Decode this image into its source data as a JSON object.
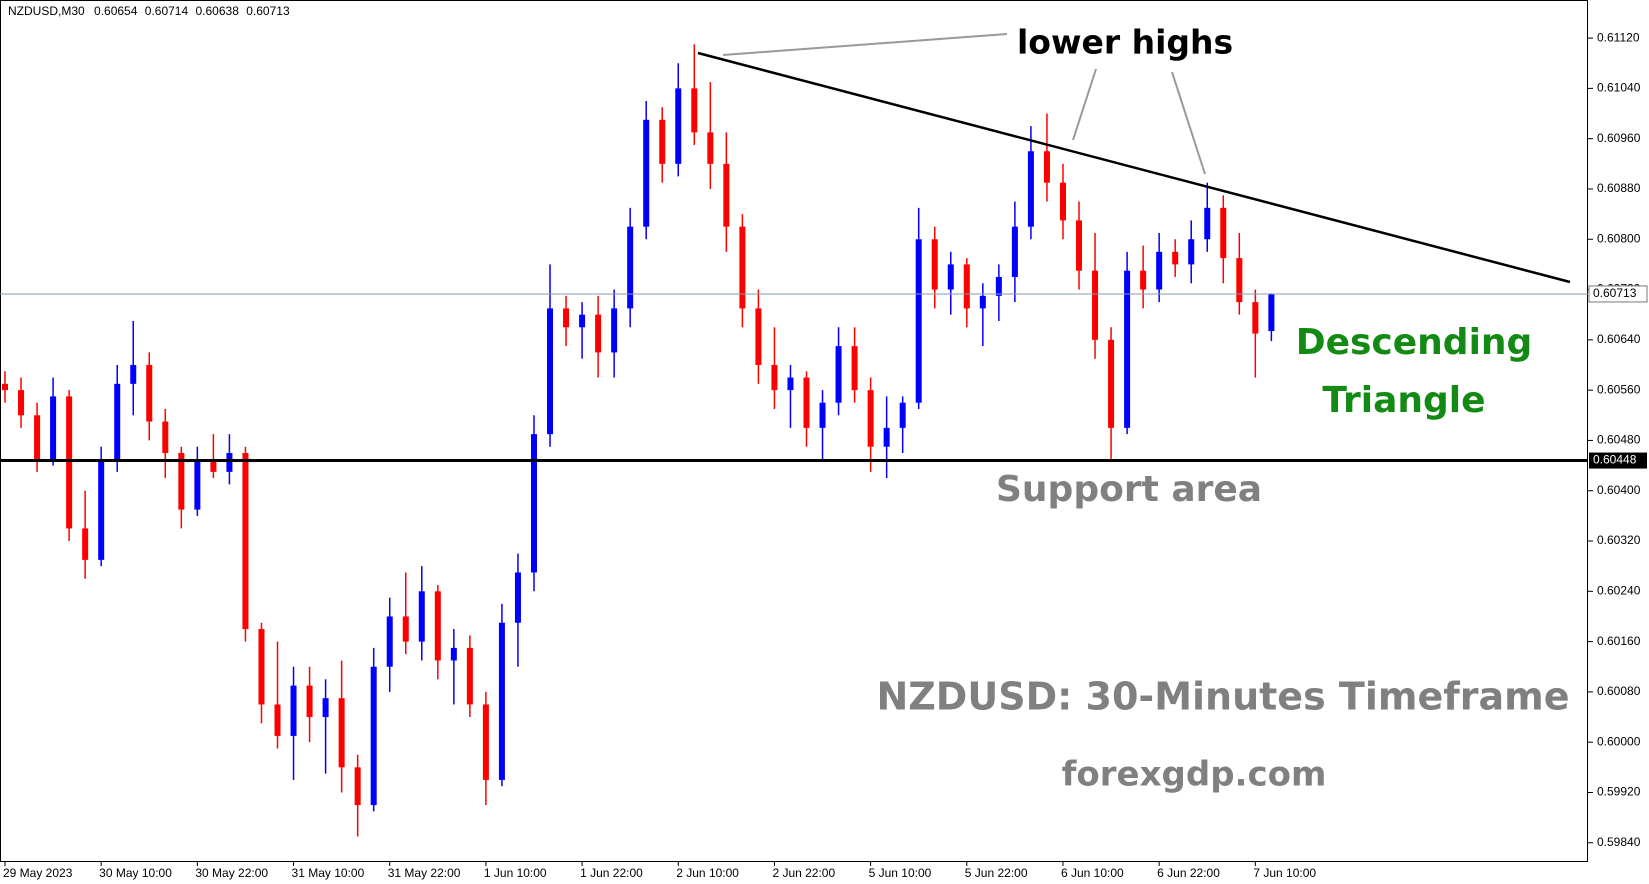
{
  "chart_data": {
    "type": "candlestick",
    "symbol": "NZDUSD,M30",
    "up_color": "#0000ff",
    "down_color": "#ff0000",
    "candles": [
      [
        0.6057,
        0.6059,
        0.6054,
        0.6056
      ],
      [
        0.6056,
        0.6058,
        0.605,
        0.6052
      ],
      [
        0.6052,
        0.6054,
        0.6043,
        0.6045
      ],
      [
        0.6045,
        0.6058,
        0.6044,
        0.6055
      ],
      [
        0.6055,
        0.6056,
        0.6032,
        0.6034
      ],
      [
        0.6034,
        0.604,
        0.6026,
        0.6029
      ],
      [
        0.6029,
        0.6047,
        0.6028,
        0.6045
      ],
      [
        0.6045,
        0.606,
        0.6043,
        0.6057
      ],
      [
        0.6057,
        0.6067,
        0.6052,
        0.606
      ],
      [
        0.606,
        0.6062,
        0.6048,
        0.6051
      ],
      [
        0.6051,
        0.6053,
        0.6042,
        0.6046
      ],
      [
        0.6046,
        0.6047,
        0.6034,
        0.6037
      ],
      [
        0.6037,
        0.6047,
        0.6036,
        0.6045
      ],
      [
        0.6045,
        0.6049,
        0.6042,
        0.6043
      ],
      [
        0.6043,
        0.6049,
        0.6041,
        0.6046
      ],
      [
        0.6046,
        0.6047,
        0.6016,
        0.6018
      ],
      [
        0.6018,
        0.6019,
        0.6003,
        0.6006
      ],
      [
        0.6006,
        0.6016,
        0.5999,
        0.6001
      ],
      [
        0.6001,
        0.6012,
        0.5994,
        0.6009
      ],
      [
        0.6009,
        0.6012,
        0.6,
        0.6004
      ],
      [
        0.6004,
        0.601,
        0.5995,
        0.6007
      ],
      [
        0.6007,
        0.6013,
        0.5992,
        0.5996
      ],
      [
        0.5996,
        0.5998,
        0.5985,
        0.599
      ],
      [
        0.599,
        0.6015,
        0.5989,
        0.6012
      ],
      [
        0.6012,
        0.6023,
        0.6008,
        0.602
      ],
      [
        0.602,
        0.6027,
        0.6014,
        0.6016
      ],
      [
        0.6016,
        0.6028,
        0.6013,
        0.6024
      ],
      [
        0.6024,
        0.6025,
        0.601,
        0.6013
      ],
      [
        0.6013,
        0.6018,
        0.6006,
        0.6015
      ],
      [
        0.6015,
        0.6017,
        0.6004,
        0.6006
      ],
      [
        0.6006,
        0.6008,
        0.599,
        0.5994
      ],
      [
        0.5994,
        0.6022,
        0.5993,
        0.6019
      ],
      [
        0.6019,
        0.603,
        0.6012,
        0.6027
      ],
      [
        0.6027,
        0.6052,
        0.6024,
        0.6049
      ],
      [
        0.6049,
        0.6076,
        0.6047,
        0.6069
      ],
      [
        0.6069,
        0.6071,
        0.6063,
        0.6066
      ],
      [
        0.6066,
        0.607,
        0.6061,
        0.6068
      ],
      [
        0.6068,
        0.6071,
        0.6058,
        0.6062
      ],
      [
        0.6062,
        0.6072,
        0.6058,
        0.6069
      ],
      [
        0.6069,
        0.6085,
        0.6066,
        0.6082
      ],
      [
        0.6082,
        0.6102,
        0.608,
        0.6099
      ],
      [
        0.6099,
        0.6101,
        0.6089,
        0.6092
      ],
      [
        0.6092,
        0.6108,
        0.609,
        0.6104
      ],
      [
        0.6104,
        0.6111,
        0.6095,
        0.6097
      ],
      [
        0.6097,
        0.6105,
        0.6088,
        0.6092
      ],
      [
        0.6092,
        0.6097,
        0.6078,
        0.6082
      ],
      [
        0.6082,
        0.6084,
        0.6066,
        0.6069
      ],
      [
        0.6069,
        0.6072,
        0.6057,
        0.606
      ],
      [
        0.606,
        0.6066,
        0.6053,
        0.6056
      ],
      [
        0.6056,
        0.606,
        0.605,
        0.6058
      ],
      [
        0.6058,
        0.6059,
        0.6047,
        0.605
      ],
      [
        0.605,
        0.6056,
        0.6045,
        0.6054
      ],
      [
        0.6054,
        0.6066,
        0.6052,
        0.6063
      ],
      [
        0.6063,
        0.6066,
        0.6054,
        0.6056
      ],
      [
        0.6056,
        0.6058,
        0.6043,
        0.6047
      ],
      [
        0.6047,
        0.6055,
        0.6042,
        0.605
      ],
      [
        0.605,
        0.6055,
        0.6046,
        0.6054
      ],
      [
        0.6054,
        0.6085,
        0.6053,
        0.608
      ],
      [
        0.608,
        0.6082,
        0.6069,
        0.6072
      ],
      [
        0.6072,
        0.6078,
        0.6068,
        0.6076
      ],
      [
        0.6076,
        0.6077,
        0.6066,
        0.6069
      ],
      [
        0.6069,
        0.6073,
        0.6063,
        0.6071
      ],
      [
        0.6071,
        0.6076,
        0.6067,
        0.6074
      ],
      [
        0.6074,
        0.6086,
        0.607,
        0.6082
      ],
      [
        0.6082,
        0.6098,
        0.608,
        0.6094
      ],
      [
        0.6094,
        0.61,
        0.6086,
        0.6089
      ],
      [
        0.6089,
        0.6092,
        0.608,
        0.6083
      ],
      [
        0.6083,
        0.6086,
        0.6072,
        0.6075
      ],
      [
        0.6075,
        0.6081,
        0.6061,
        0.6064
      ],
      [
        0.6064,
        0.6066,
        0.6045,
        0.605
      ],
      [
        0.605,
        0.6078,
        0.6049,
        0.6075
      ],
      [
        0.6075,
        0.6079,
        0.6069,
        0.6072
      ],
      [
        0.6072,
        0.6081,
        0.607,
        0.6078
      ],
      [
        0.6078,
        0.608,
        0.6074,
        0.6076
      ],
      [
        0.6076,
        0.6083,
        0.6073,
        0.608
      ],
      [
        0.608,
        0.6089,
        0.6078,
        0.6085
      ],
      [
        0.6085,
        0.6087,
        0.6073,
        0.6077
      ],
      [
        0.6077,
        0.6081,
        0.6068,
        0.607
      ],
      [
        0.607,
        0.6072,
        0.6058,
        0.6065
      ],
      [
        0.60654,
        0.60714,
        0.60638,
        0.60713
      ]
    ],
    "xticks": [
      {
        "value": 0,
        "label": "29 May 2023"
      },
      {
        "value": 6,
        "label": "30 May 10:00"
      },
      {
        "value": 12,
        "label": "30 May 22:00"
      },
      {
        "value": 18,
        "label": "31 May 10:00"
      },
      {
        "value": 24,
        "label": "31 May 22:00"
      },
      {
        "value": 30,
        "label": "1 Jun 10:00"
      },
      {
        "value": 36,
        "label": "1 Jun 22:00"
      },
      {
        "value": 42,
        "label": "2 Jun 10:00"
      },
      {
        "value": 48,
        "label": "2 Jun 22:00"
      },
      {
        "value": 54,
        "label": "5 Jun 10:00"
      },
      {
        "value": 60,
        "label": "5 Jun 22:00"
      },
      {
        "value": 66,
        "label": "6 Jun 10:00"
      },
      {
        "value": 72,
        "label": "6 Jun 22:00"
      },
      {
        "value": 78,
        "label": "7 Jun 10:00"
      }
    ],
    "ylim": [
      0.59811,
      0.61179
    ],
    "yticks": [
      {
        "value": 0.6112,
        "label": "0.61120"
      },
      {
        "value": 0.6104,
        "label": "0.61040"
      },
      {
        "value": 0.6096,
        "label": "0.60960"
      },
      {
        "value": 0.6088,
        "label": "0.60880"
      },
      {
        "value": 0.608,
        "label": "0.60800"
      },
      {
        "value": 0.6072,
        "label": "0.60720"
      },
      {
        "value": 0.6064,
        "label": "0.60640"
      },
      {
        "value": 0.6056,
        "label": "0.60560"
      },
      {
        "value": 0.6048,
        "label": "0.60480"
      },
      {
        "value": 0.604,
        "label": "0.60400"
      },
      {
        "value": 0.6032,
        "label": "0.60320"
      },
      {
        "value": 0.6024,
        "label": "0.60240"
      },
      {
        "value": 0.6016,
        "label": "0.60160"
      },
      {
        "value": 0.6008,
        "label": "0.60080"
      },
      {
        "value": 0.6,
        "label": "0.60000"
      },
      {
        "value": 0.5992,
        "label": "0.59920"
      },
      {
        "value": 0.5984,
        "label": "0.59840"
      }
    ],
    "current_price": 0.60713,
    "support": 0.60448,
    "annotations": {
      "lower_highs": "lower highs",
      "pattern": [
        "Descending",
        "Triangle"
      ],
      "support_label": "Support area",
      "timeframe": "NZDUSD: 30-Minutes Timeframe",
      "site": "forexgdp.com"
    }
  }
}
